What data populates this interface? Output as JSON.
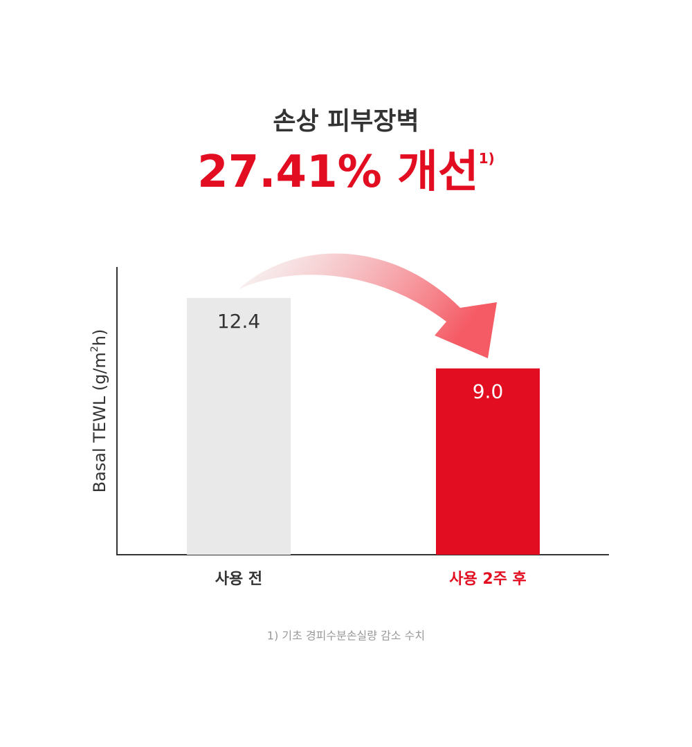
{
  "chart_data": {
    "type": "bar",
    "title": "손상 피부장벽",
    "headline": "27.41% 개선",
    "headline_note": "1)",
    "ylabel": [
      "Basal TEWL (g/m",
      "2",
      "h)"
    ],
    "categories": [
      "사용 전",
      "사용 2주 후"
    ],
    "values": [
      12.4,
      9.0
    ],
    "value_labels": [
      "12.4",
      "9.0"
    ],
    "colors": [
      "#e9e9e9",
      "#e20d20"
    ],
    "ylim": [
      0,
      13.9
    ],
    "footnote": "1) 기초 경피수분손실량 감소 수치"
  }
}
